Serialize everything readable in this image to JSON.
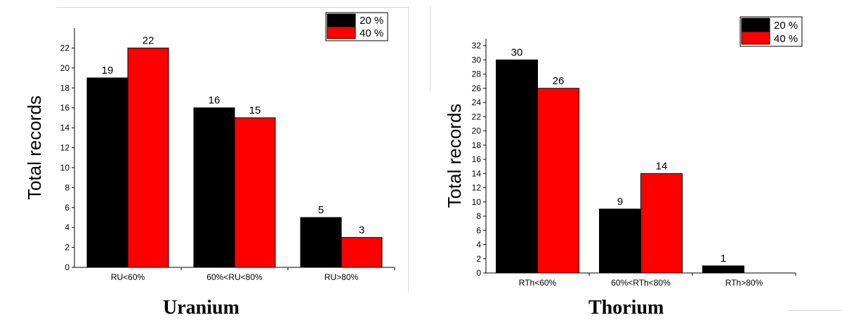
{
  "captions": {
    "left": "Uranium",
    "right": "Thorium"
  },
  "colors": {
    "series_20": "#000000",
    "series_40": "#ff0000"
  },
  "chart_data": [
    {
      "type": "bar",
      "title": "",
      "xlabel": "",
      "ylabel": "Total records",
      "categories": [
        "RU<60%",
        "60%<RU<80%",
        "RU>80%"
      ],
      "series": [
        {
          "name": "20 %",
          "values": [
            19,
            16,
            5
          ],
          "color": "#000000"
        },
        {
          "name": "40 %",
          "values": [
            22,
            15,
            3
          ],
          "color": "#ff0000"
        }
      ],
      "ylim": [
        0,
        24
      ],
      "yticks": [
        0,
        2,
        4,
        6,
        8,
        10,
        12,
        14,
        16,
        18,
        20,
        22
      ],
      "legend": "top-right",
      "grid": false
    },
    {
      "type": "bar",
      "title": "",
      "xlabel": "",
      "ylabel": "Total records",
      "categories": [
        "RTh<60%",
        "60%<RTh<80%",
        "RTh>80%"
      ],
      "series": [
        {
          "name": "20 %",
          "values": [
            30,
            9,
            1
          ],
          "color": "#000000"
        },
        {
          "name": "40 %",
          "values": [
            26,
            14,
            null
          ],
          "color": "#ff0000"
        }
      ],
      "ylim": [
        0,
        33
      ],
      "yticks": [
        0,
        2,
        4,
        6,
        8,
        10,
        12,
        14,
        16,
        18,
        20,
        22,
        24,
        26,
        28,
        30,
        32
      ],
      "legend": "top-right",
      "grid": false
    }
  ]
}
